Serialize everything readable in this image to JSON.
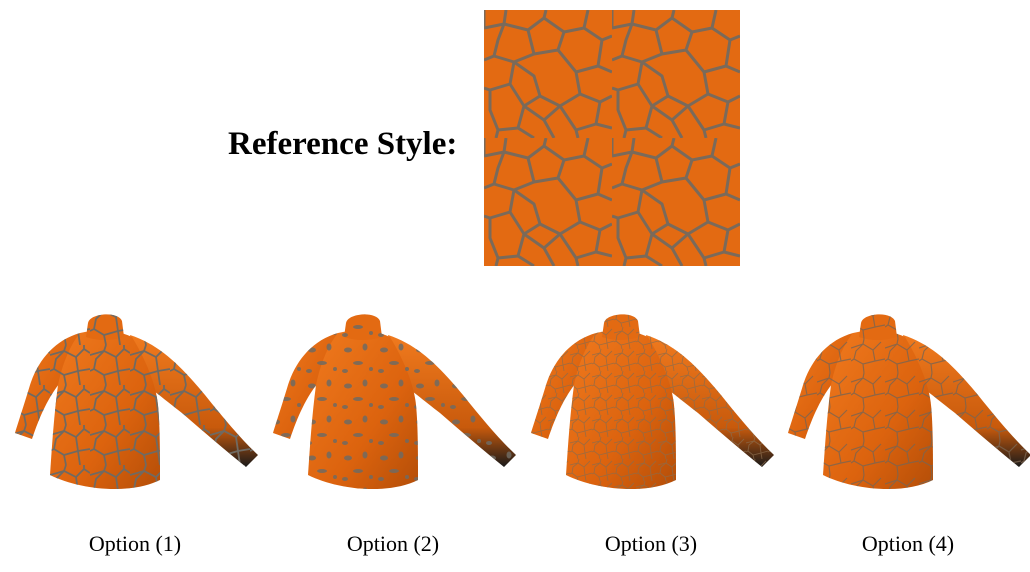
{
  "reference": {
    "title": "Reference Style:",
    "texture": "orange-voronoi-cells"
  },
  "options": [
    {
      "label": "Option (1)",
      "texture": "large-cells"
    },
    {
      "label": "Option (2)",
      "texture": "scattered-spots"
    },
    {
      "label": "Option (3)",
      "texture": "faint-small-cells"
    },
    {
      "label": "Option (4)",
      "texture": "sparse-cells"
    }
  ],
  "colors": {
    "orange": "#e36a12",
    "cell_line": "#7a6a5a",
    "shadow": "#1a1a1a"
  }
}
